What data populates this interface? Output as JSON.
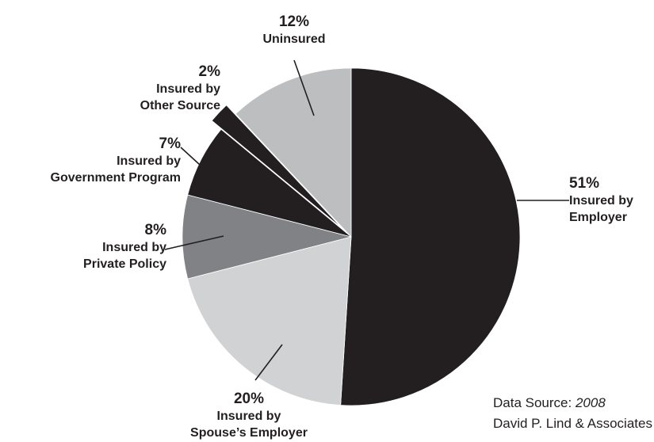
{
  "chart_data": {
    "type": "pie",
    "title": "",
    "start_angle_deg": 0,
    "direction": "clockwise",
    "slices": [
      {
        "percent": 51,
        "value_label": "51%",
        "label_lines": [
          "Insured by",
          "Employer"
        ],
        "color": "#231f20"
      },
      {
        "percent": 20,
        "value_label": "20%",
        "label_lines": [
          "Insured by",
          "Spouse’s Employer"
        ],
        "color": "#d1d2d4"
      },
      {
        "percent": 8,
        "value_label": "8%",
        "label_lines": [
          "Insured by",
          "Private Policy"
        ],
        "color": "#808285"
      },
      {
        "percent": 7,
        "value_label": "7%",
        "label_lines": [
          "Insured by",
          "Government Program"
        ],
        "color": "#231f20"
      },
      {
        "percent": 2,
        "value_label": "2%",
        "label_lines": [
          "Insured by",
          "Other Source"
        ],
        "color": "#231f20",
        "exploded": true
      },
      {
        "percent": 12,
        "value_label": "12%",
        "label_lines": [
          "Uninsured"
        ],
        "color": "#bcbec0"
      }
    ]
  },
  "source": {
    "prefix": "Data Source: ",
    "italic": "2008",
    "line2": "David P. Lind & Associates"
  }
}
